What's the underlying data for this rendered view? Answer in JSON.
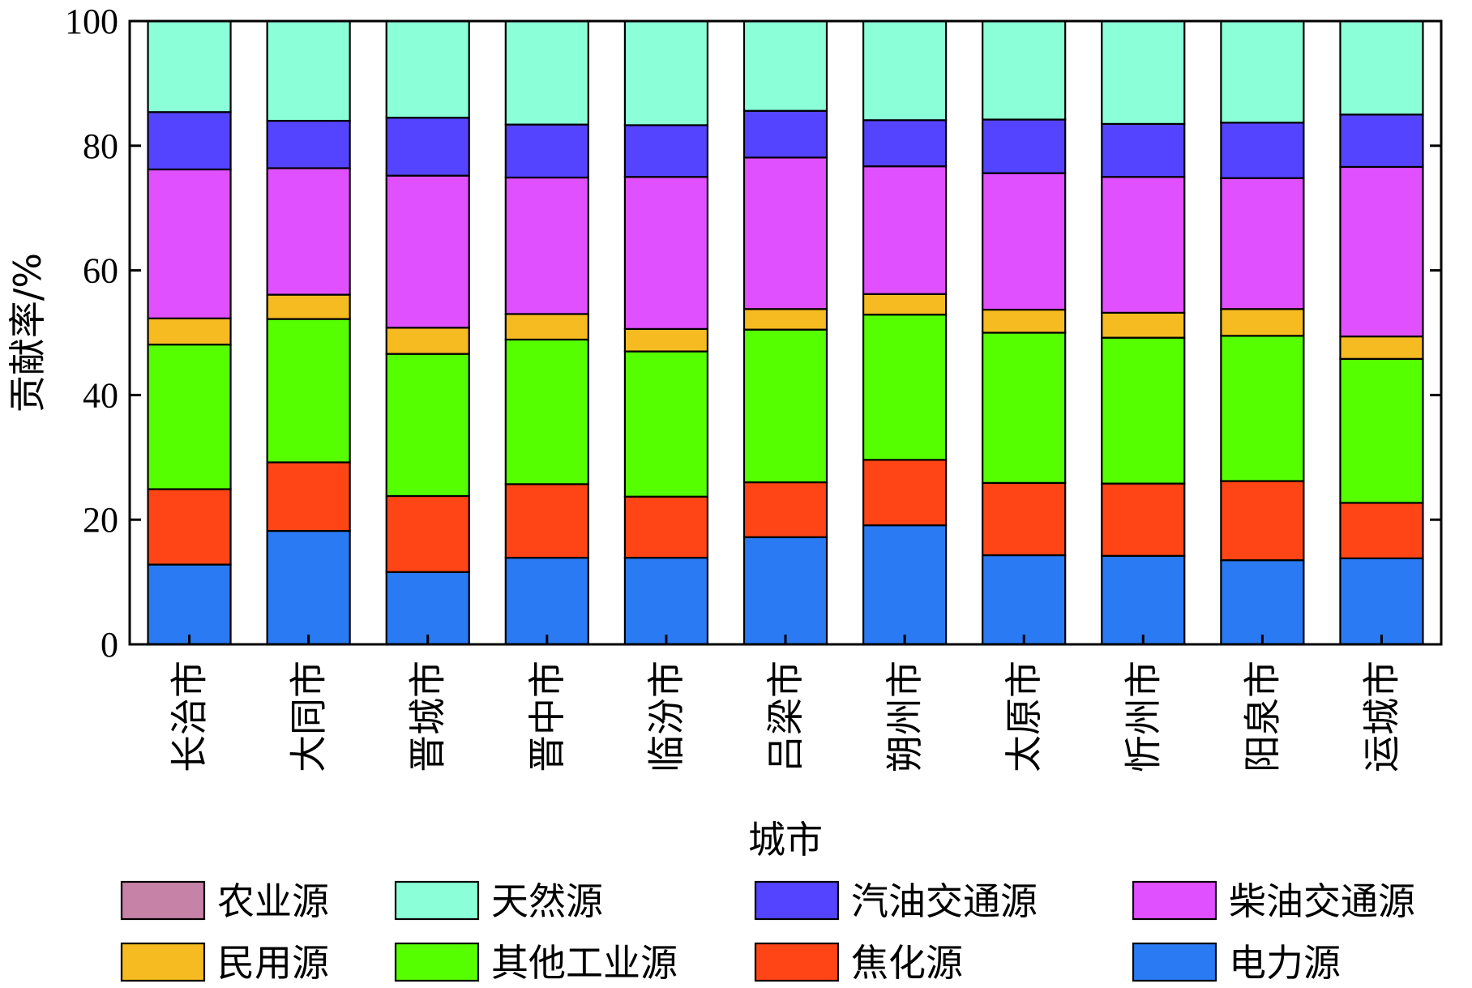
{
  "chart_data": {
    "type": "bar",
    "stacked": true,
    "xlabel": "城市",
    "ylabel": "贡献率/%",
    "ylim": [
      0,
      100
    ],
    "yticks": [
      0,
      20,
      40,
      60,
      80,
      100
    ],
    "legend_position": "bottom",
    "categories": [
      "长治市",
      "大同市",
      "晋城市",
      "晋中市",
      "临汾市",
      "吕梁市",
      "朔州市",
      "太原市",
      "忻州市",
      "阳泉市",
      "运城市"
    ],
    "series": [
      {
        "name": "电力源",
        "color": "#2A7AF4",
        "values": [
          12.8,
          18.2,
          11.6,
          13.9,
          13.9,
          17.2,
          19.1,
          14.3,
          14.2,
          13.5,
          13.8
        ]
      },
      {
        "name": "焦化源",
        "color": "#FF4516",
        "values": [
          12.1,
          11.0,
          12.2,
          11.8,
          9.8,
          8.8,
          10.5,
          11.6,
          11.6,
          12.7,
          8.9
        ]
      },
      {
        "name": "其他工业源",
        "color": "#55FF00",
        "values": [
          23.2,
          23.0,
          22.8,
          23.2,
          23.3,
          24.5,
          23.3,
          24.1,
          23.4,
          23.3,
          23.1
        ]
      },
      {
        "name": "民用源",
        "color": "#F5BB20",
        "values": [
          4.2,
          3.9,
          4.2,
          4.1,
          3.6,
          3.3,
          3.3,
          3.7,
          4.0,
          4.3,
          3.6
        ]
      },
      {
        "name": "柴油交通源",
        "color": "#E150FF",
        "values": [
          23.9,
          20.3,
          24.4,
          21.9,
          24.4,
          24.3,
          20.5,
          21.9,
          21.8,
          21.0,
          27.2
        ]
      },
      {
        "name": "汽油交通源",
        "color": "#5544FF",
        "values": [
          9.2,
          7.6,
          9.3,
          8.5,
          8.3,
          7.5,
          7.4,
          8.6,
          8.5,
          8.9,
          8.4
        ]
      },
      {
        "name": "天然源",
        "color": "#8AFFD8",
        "values": [
          14.6,
          16.0,
          15.5,
          16.6,
          16.7,
          14.4,
          15.9,
          15.8,
          16.5,
          16.3,
          15.0
        ]
      },
      {
        "name": "农业源",
        "color": "#C782A8",
        "values": [
          0,
          0,
          0,
          0,
          0,
          0,
          0,
          0,
          0,
          0,
          0
        ]
      }
    ],
    "legend_order": [
      "农业源",
      "天然源",
      "汽油交通源",
      "柴油交通源",
      "民用源",
      "其他工业源",
      "焦化源",
      "电力源"
    ]
  }
}
